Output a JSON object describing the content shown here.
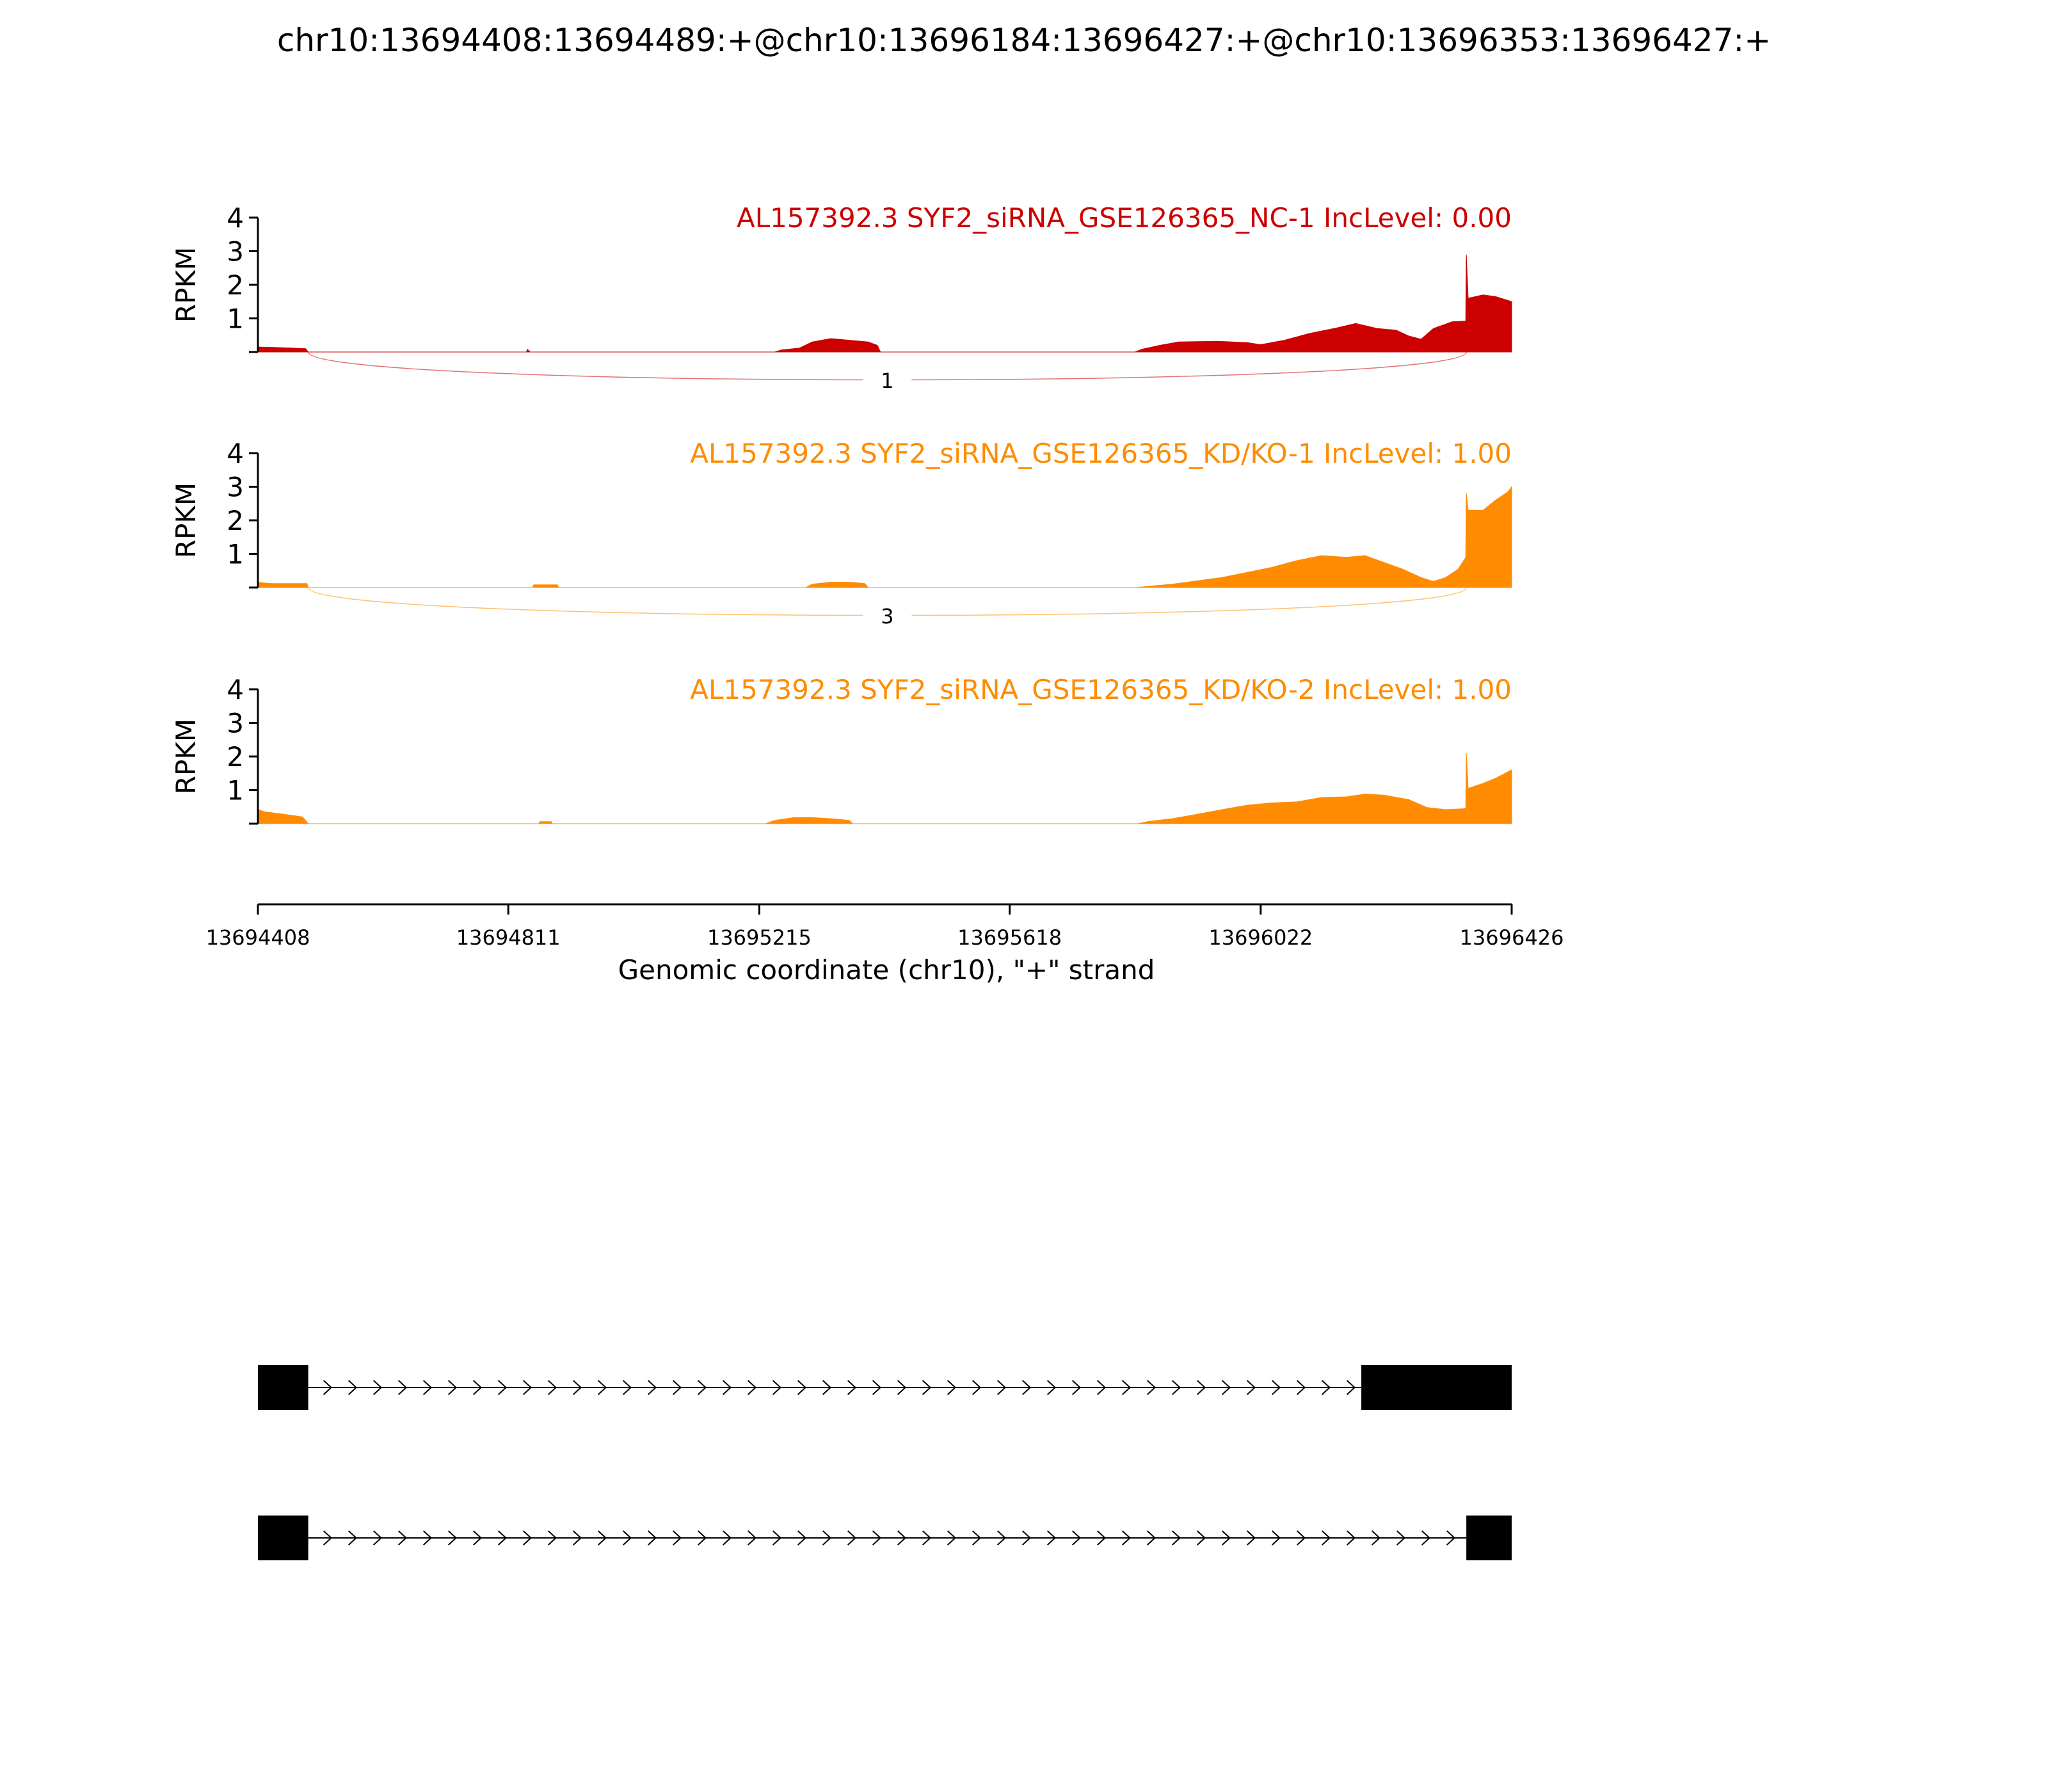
{
  "title": "chr10:13694408:13694489:+@chr10:13696184:13696427:+@chr10:13696353:13696427:+",
  "chart_data": {
    "type": "area",
    "title": "chr10:13694408:13694489:+@chr10:13696184:13696427:+@chr10:13696353:13696427:+",
    "xlabel": "Genomic coordinate (chr10), \"+\" strand",
    "ylabel": "RPKM",
    "xlim": [
      13694408,
      13696426
    ],
    "ylim": [
      0,
      4
    ],
    "xticks": [
      "13694408",
      "13694811",
      "13695215",
      "13695618",
      "13696022",
      "13696426"
    ],
    "yticks": [
      "1",
      "2",
      "3",
      "4"
    ],
    "tracks": [
      {
        "label": "AL157392.3 SYF2_siRNA_GSE126365_NC-1 IncLevel: 0.00",
        "color": "#cc0000",
        "junction_count": "1",
        "coverage": [
          [
            13694408,
            0.15
          ],
          [
            13694430,
            0.14
          ],
          [
            13694460,
            0.12
          ],
          [
            13694485,
            0.1
          ],
          [
            13694489,
            0.0
          ],
          [
            13694840,
            0.0
          ],
          [
            13694842,
            0.08
          ],
          [
            13694846,
            0.0
          ],
          [
            13695240,
            0.0
          ],
          [
            13695250,
            0.06
          ],
          [
            13695280,
            0.12
          ],
          [
            13695300,
            0.3
          ],
          [
            13695330,
            0.4
          ],
          [
            13695360,
            0.35
          ],
          [
            13695390,
            0.3
          ],
          [
            13695405,
            0.2
          ],
          [
            13695410,
            0.0
          ],
          [
            13695820,
            0.0
          ],
          [
            13695830,
            0.08
          ],
          [
            13695860,
            0.2
          ],
          [
            13695890,
            0.3
          ],
          [
            13695950,
            0.32
          ],
          [
            13696000,
            0.28
          ],
          [
            13696022,
            0.22
          ],
          [
            13696060,
            0.35
          ],
          [
            13696100,
            0.55
          ],
          [
            13696140,
            0.7
          ],
          [
            13696175,
            0.85
          ],
          [
            13696210,
            0.7
          ],
          [
            13696240,
            0.65
          ],
          [
            13696260,
            0.48
          ],
          [
            13696280,
            0.38
          ],
          [
            13696300,
            0.7
          ],
          [
            13696330,
            0.9
          ],
          [
            13696352,
            0.92
          ],
          [
            13696353,
            2.9
          ],
          [
            13696356,
            1.6
          ],
          [
            13696380,
            1.7
          ],
          [
            13696400,
            1.65
          ],
          [
            13696426,
            1.5
          ],
          [
            13696426,
            0.0
          ]
        ]
      },
      {
        "label": "AL157392.3 SYF2_siRNA_GSE126365_KD/KO-1 IncLevel: 1.00",
        "color": "#ff8c00",
        "junction_count": "3",
        "coverage": [
          [
            13694408,
            0.15
          ],
          [
            13694430,
            0.12
          ],
          [
            13694460,
            0.12
          ],
          [
            13694487,
            0.12
          ],
          [
            13694489,
            0.0
          ],
          [
            13694850,
            0.0
          ],
          [
            13694852,
            0.08
          ],
          [
            13694890,
            0.08
          ],
          [
            13694892,
            0.0
          ],
          [
            13695290,
            0.0
          ],
          [
            13695300,
            0.1
          ],
          [
            13695330,
            0.16
          ],
          [
            13695360,
            0.16
          ],
          [
            13695385,
            0.12
          ],
          [
            13695390,
            0.0
          ],
          [
            13695820,
            0.0
          ],
          [
            13695850,
            0.05
          ],
          [
            13695880,
            0.1
          ],
          [
            13695920,
            0.2
          ],
          [
            13695960,
            0.3
          ],
          [
            13696000,
            0.45
          ],
          [
            13696040,
            0.6
          ],
          [
            13696080,
            0.8
          ],
          [
            13696120,
            0.95
          ],
          [
            13696160,
            0.9
          ],
          [
            13696190,
            0.95
          ],
          [
            13696220,
            0.75
          ],
          [
            13696250,
            0.55
          ],
          [
            13696280,
            0.3
          ],
          [
            13696300,
            0.18
          ],
          [
            13696320,
            0.3
          ],
          [
            13696340,
            0.55
          ],
          [
            13696352,
            0.9
          ],
          [
            13696353,
            2.8
          ],
          [
            13696356,
            2.3
          ],
          [
            13696380,
            2.3
          ],
          [
            13696400,
            2.6
          ],
          [
            13696420,
            2.85
          ],
          [
            13696426,
            3.0
          ],
          [
            13696426,
            0.0
          ]
        ]
      },
      {
        "label": "AL157392.3 SYF2_siRNA_GSE126365_KD/KO-2 IncLevel: 1.00",
        "color": "#ff8c00",
        "junction_count": "",
        "coverage": [
          [
            13694408,
            0.42
          ],
          [
            13694420,
            0.35
          ],
          [
            13694450,
            0.28
          ],
          [
            13694480,
            0.2
          ],
          [
            13694489,
            0.0
          ],
          [
            13694860,
            0.0
          ],
          [
            13694862,
            0.06
          ],
          [
            13694880,
            0.06
          ],
          [
            13694882,
            0.0
          ],
          [
            13695225,
            0.0
          ],
          [
            13695240,
            0.1
          ],
          [
            13695270,
            0.18
          ],
          [
            13695300,
            0.18
          ],
          [
            13695330,
            0.15
          ],
          [
            13695360,
            0.1
          ],
          [
            13695365,
            0.0
          ],
          [
            13695825,
            0.0
          ],
          [
            13695840,
            0.06
          ],
          [
            13695880,
            0.15
          ],
          [
            13695920,
            0.28
          ],
          [
            13695960,
            0.42
          ],
          [
            13696000,
            0.55
          ],
          [
            13696040,
            0.62
          ],
          [
            13696080,
            0.65
          ],
          [
            13696120,
            0.78
          ],
          [
            13696160,
            0.8
          ],
          [
            13696190,
            0.88
          ],
          [
            13696220,
            0.85
          ],
          [
            13696260,
            0.72
          ],
          [
            13696290,
            0.48
          ],
          [
            13696320,
            0.42
          ],
          [
            13696352,
            0.45
          ],
          [
            13696353,
            2.1
          ],
          [
            13696356,
            1.05
          ],
          [
            13696380,
            1.2
          ],
          [
            13696400,
            1.35
          ],
          [
            13696426,
            1.6
          ],
          [
            13696426,
            0.0
          ]
        ]
      }
    ],
    "junctions": [
      {
        "start": 13694489,
        "end": 13696353
      }
    ],
    "isoforms": [
      {
        "exons": [
          [
            13694408,
            13694489
          ],
          [
            13696184,
            13696427
          ]
        ]
      },
      {
        "exons": [
          [
            13694408,
            13694489
          ],
          [
            13696353,
            13696427
          ]
        ]
      }
    ]
  }
}
